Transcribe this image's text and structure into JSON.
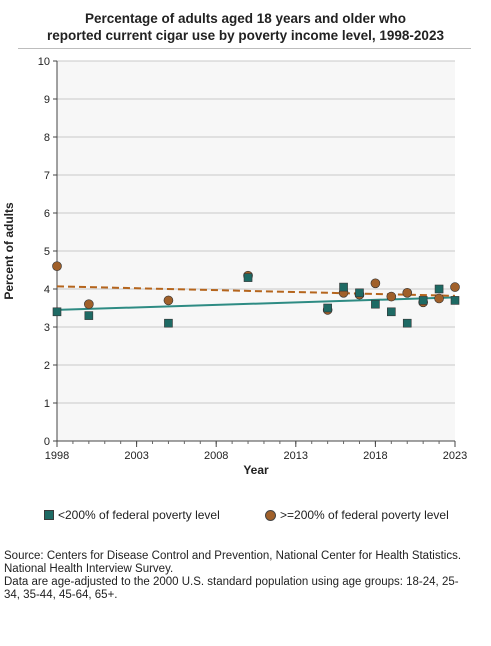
{
  "title_lines": [
    "Percentage of adults aged 18 years and older who",
    "reported current cigar use by poverty income level, 1998-2023"
  ],
  "chart_data": {
    "type": "scatter",
    "title": "Percentage of adults aged 18 years and older who reported current cigar use by poverty income level, 1998-2023",
    "xlabel": "Year",
    "ylabel": "Percent of adults",
    "xlim": [
      1998,
      2023
    ],
    "ylim": [
      0,
      10
    ],
    "x_ticks": [
      "1998",
      "2003",
      "2008",
      "2013",
      "2018",
      "2023"
    ],
    "y_ticks": [
      "0",
      "1",
      "2",
      "3",
      "4",
      "5",
      "6",
      "7",
      "8",
      "9",
      "10"
    ],
    "grid": "horizontal",
    "legend_position": "bottom",
    "series": [
      {
        "name": "<200% of federal poverty level",
        "marker": "square",
        "color": "#1e6a64",
        "trend_color": "#2e8b83",
        "trend_style": "solid",
        "x": [
          1998,
          2000,
          2005,
          2010,
          2015,
          2016,
          2017,
          2018,
          2019,
          2020,
          2021,
          2022,
          2023
        ],
        "y": [
          3.4,
          3.3,
          3.1,
          4.3,
          3.5,
          4.05,
          3.9,
          3.6,
          3.4,
          3.1,
          3.7,
          4.0,
          3.7
        ],
        "trend": [
          3.45,
          3.78
        ]
      },
      {
        "name": ">=200% of federal poverty level",
        "marker": "circle",
        "color": "#a0602a",
        "trend_color": "#b5651d",
        "trend_style": "dashed",
        "x": [
          1998,
          2000,
          2005,
          2010,
          2015,
          2016,
          2017,
          2018,
          2019,
          2020,
          2021,
          2022,
          2023
        ],
        "y": [
          4.6,
          3.6,
          3.7,
          4.35,
          3.45,
          3.9,
          3.85,
          4.15,
          3.8,
          3.9,
          3.65,
          3.75,
          4.05
        ],
        "trend": [
          4.07,
          3.82
        ]
      }
    ]
  },
  "legend": [
    {
      "label": "<200% of federal poverty level"
    },
    {
      "label": ">=200% of federal poverty level"
    }
  ],
  "source_lines": [
    "Source: Centers for Disease Control and Prevention, National Center for Health Statistics.",
    "National Health Interview Survey.",
    "Data are age-adjusted to the 2000 U.S. standard population using age groups: 18-24, 25-",
    "34, 35-44, 45-64, 65+."
  ]
}
